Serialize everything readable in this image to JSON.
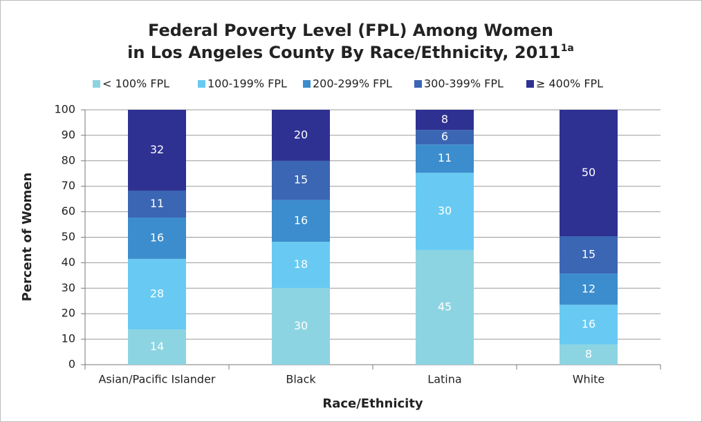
{
  "chart_data": {
    "type": "stacked_bar",
    "title": [
      "Federal Poverty Level (FPL) Among Women",
      "in Los Angeles County By Race/Ethnicity, 2011"
    ],
    "title_note": "1a",
    "x_label": "Race/Ethnicity",
    "y_label": "Percent of Women",
    "categories": [
      "Asian/Pacific Islander",
      "Black",
      "Latina",
      "White"
    ],
    "series": [
      {
        "name": "< 100% FPL",
        "color": "#8dd4e2",
        "values": [
          13.8,
          30.1,
          45,
          7.9
        ],
        "value_labels": [
          "14",
          "30",
          "45",
          "8"
        ]
      },
      {
        "name": "100-199% FPL",
        "color": "#68caf2",
        "values": [
          27.7,
          18.1,
          30.3,
          15.6
        ],
        "value_labels": [
          "28",
          "18",
          "30",
          "16"
        ]
      },
      {
        "name": "200-299% FPL",
        "color": "#3b8dcd",
        "values": [
          16.2,
          16.4,
          11.1,
          12.2
        ],
        "value_labels": [
          "16",
          "16",
          "11",
          "12"
        ]
      },
      {
        "name": "300-399% FPL",
        "color": "#3b66b4",
        "values": [
          10.6,
          15.4,
          5.7,
          14.7
        ],
        "value_labels": [
          "11",
          "15",
          "6",
          "15"
        ]
      },
      {
        "name": "≥ 400% FPL",
        "color": "#2e3192",
        "values": [
          31.7,
          20,
          7.9,
          49.6
        ],
        "value_labels": [
          "32",
          "20",
          "8",
          "50"
        ]
      }
    ],
    "ylim": [
      0,
      100
    ],
    "yticks": [
      0,
      10,
      20,
      30,
      40,
      50,
      60,
      70,
      80,
      90,
      100
    ],
    "grid": true
  }
}
